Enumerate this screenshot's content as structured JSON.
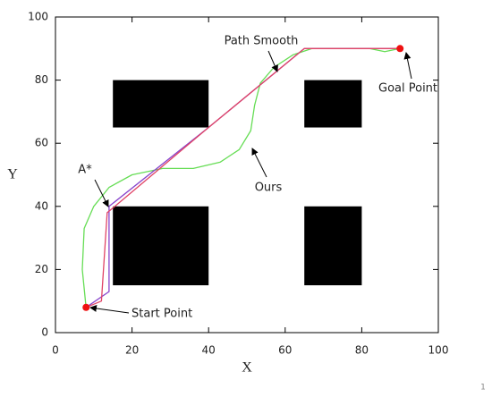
{
  "chart_data": {
    "type": "line",
    "xlabel": "X",
    "ylabel": "Y",
    "xlim": [
      0,
      100
    ],
    "ylim": [
      0,
      100
    ],
    "xticks": [
      0,
      20,
      40,
      60,
      80,
      100
    ],
    "yticks": [
      0,
      20,
      40,
      60,
      80,
      100
    ],
    "obstacles": [
      {
        "x": [
          15,
          40
        ],
        "y": [
          15,
          40
        ]
      },
      {
        "x": [
          15,
          40
        ],
        "y": [
          65,
          80
        ]
      },
      {
        "x": [
          65,
          80
        ],
        "y": [
          65,
          80
        ]
      },
      {
        "x": [
          65,
          80
        ],
        "y": [
          15,
          40
        ]
      }
    ],
    "series": [
      {
        "name": "Ours",
        "color": "#66dd55",
        "x": [
          8,
          7,
          7.5,
          10,
          14,
          20,
          28,
          36,
          43,
          48,
          51,
          52,
          53.5,
          57,
          62,
          67,
          75,
          82,
          86,
          90
        ],
        "y": [
          8,
          20,
          33,
          40,
          46,
          50,
          52,
          52,
          54,
          58,
          64,
          72,
          79,
          84,
          88,
          90,
          90,
          90,
          89,
          90
        ]
      },
      {
        "name": "A*",
        "color": "#8844cc",
        "x": [
          8,
          14,
          14,
          40,
          65,
          90
        ],
        "y": [
          8,
          13,
          40,
          65,
          90,
          90
        ]
      },
      {
        "name": "Path Smooth",
        "color": "#e04466",
        "x": [
          8,
          12,
          13.5,
          16,
          40,
          65,
          90
        ],
        "y": [
          8,
          10,
          38,
          40.5,
          65,
          90,
          90
        ]
      }
    ],
    "points": [
      {
        "label": "Start Point",
        "x": 8,
        "y": 8,
        "color": "#ee1111"
      },
      {
        "label": "Goal Point",
        "x": 90,
        "y": 90,
        "color": "#ee1111"
      }
    ],
    "corner_note": "1"
  }
}
